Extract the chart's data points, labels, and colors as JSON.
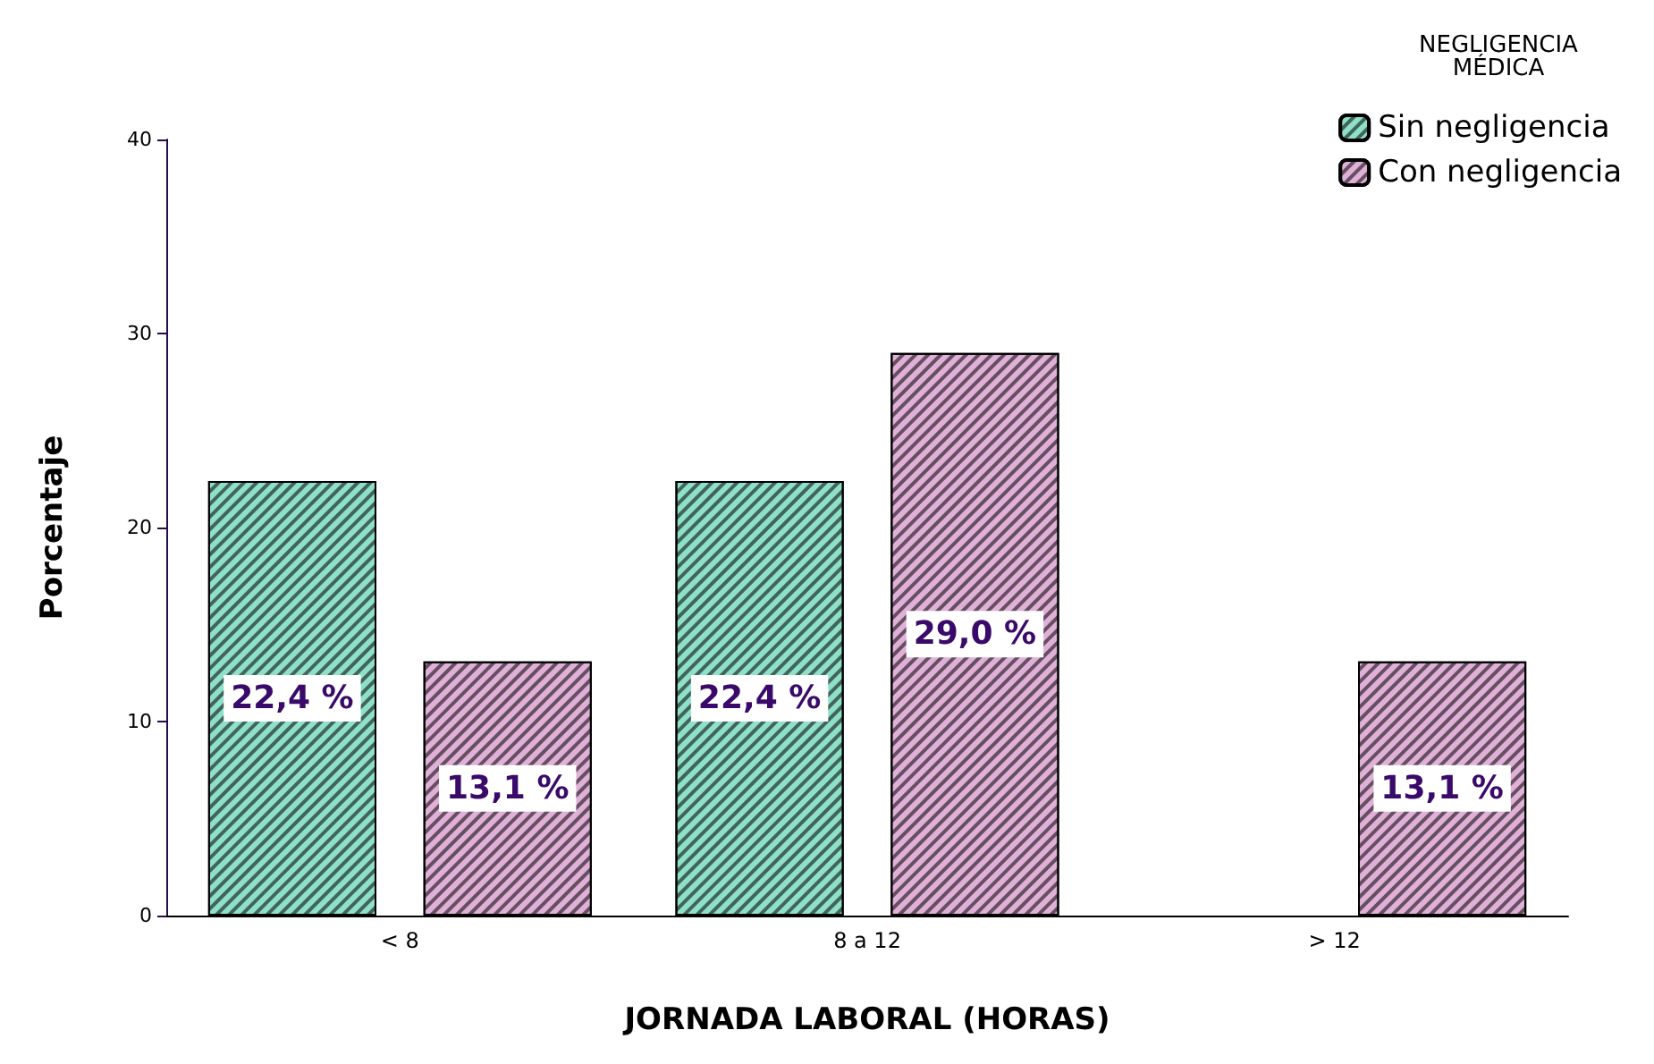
{
  "chart_data": {
    "type": "bar",
    "xlabel": "JORNADA LABORAL (HORAS)",
    "ylabel": "Porcentaje",
    "legend_title": "NEGLIGENCIA\nMÉDICA",
    "categories": [
      "< 8",
      "8 a 12",
      "> 12"
    ],
    "series": [
      {
        "name": "Sin negligencia",
        "color": "#8fe0c8",
        "values": [
          22.4,
          22.4,
          null
        ],
        "value_labels": [
          "22,4 %",
          "22,4 %",
          null
        ]
      },
      {
        "name": "Con negligencia",
        "color": "#e0b0d8",
        "values": [
          13.1,
          29.0,
          13.1
        ],
        "value_labels": [
          "13,1 %",
          "29,0 %",
          "13,1 %"
        ]
      }
    ],
    "ylim": [
      0,
      40
    ],
    "yticks": [
      0,
      10,
      20,
      30,
      40
    ],
    "grid": false,
    "legend": "top right"
  }
}
